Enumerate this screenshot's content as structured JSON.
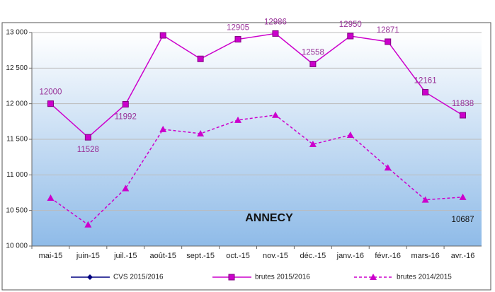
{
  "chart_data": {
    "type": "line",
    "annotation": "ANNECY",
    "categories": [
      "mai-15",
      "juin-15",
      "juil.-15",
      "août-15",
      "sept.-15",
      "oct.-15",
      "nov.-15",
      "déc.-15",
      "janv.-16",
      "févr.-16",
      "mars-16",
      "avr.-16"
    ],
    "series": [
      {
        "name": "CVS 2015/2016",
        "color": "#000080",
        "marker": "diamond",
        "dash": false,
        "values": [
          null,
          null,
          null,
          null,
          null,
          null,
          null,
          null,
          null,
          null,
          null,
          null
        ]
      },
      {
        "name": "brutes 2015/2016",
        "color": "#cc00cc",
        "marker": "square",
        "dash": false,
        "values": [
          12000,
          11528,
          11992,
          12960,
          12630,
          12905,
          12986,
          12558,
          12950,
          12871,
          12161,
          11838
        ],
        "value_labels": [
          "12000",
          "11528",
          "11992",
          null,
          null,
          "12905",
          "12986",
          "12558",
          "12950",
          "12871",
          "12161",
          "11838"
        ]
      },
      {
        "name": "brutes 2014/2015",
        "color": "#cc00cc",
        "marker": "triangle",
        "dash": true,
        "values": [
          10675,
          10300,
          10810,
          11640,
          11580,
          11770,
          11840,
          11430,
          11560,
          11100,
          10650,
          10687
        ],
        "value_labels": [
          null,
          null,
          null,
          null,
          null,
          null,
          null,
          null,
          null,
          null,
          null,
          "10687"
        ]
      }
    ],
    "ylim": [
      10000,
      13000
    ],
    "yticks": [
      {
        "value": 10000,
        "label": "10 000"
      },
      {
        "value": 10500,
        "label": "10 500"
      },
      {
        "value": 11000,
        "label": "11 000"
      },
      {
        "value": 11500,
        "label": "11 500"
      },
      {
        "value": 12000,
        "label": "12 000"
      },
      {
        "value": 12500,
        "label": "12 500"
      },
      {
        "value": 13000,
        "label": "13 000"
      }
    ],
    "grid": true,
    "legend": "bottom"
  }
}
